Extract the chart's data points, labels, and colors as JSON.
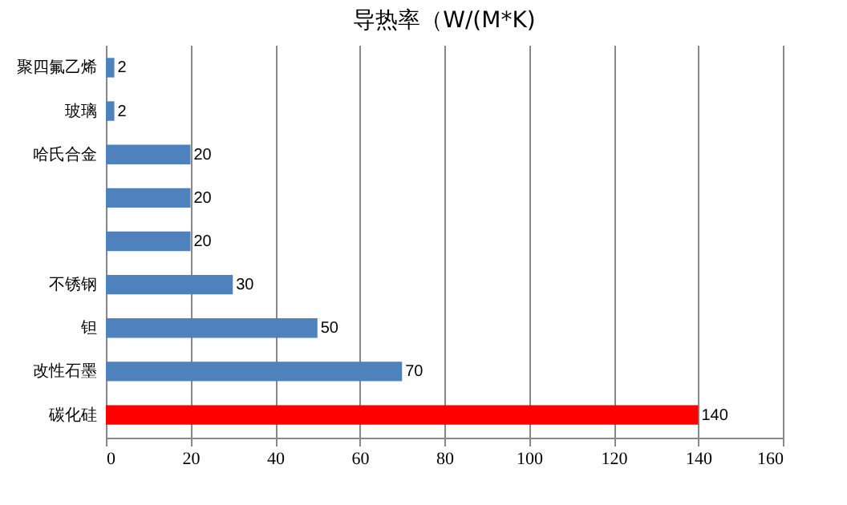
{
  "chart_data": {
    "type": "bar",
    "orientation": "horizontal",
    "title": "导热率（W/(M*K)",
    "categories": [
      "聚四氟乙烯",
      "玻璃",
      "哈氏合金",
      null,
      null,
      "不锈钢",
      "钽",
      "改性石墨",
      "碳化硅"
    ],
    "values": [
      2,
      2,
      20,
      20,
      20,
      30,
      50,
      70,
      140
    ],
    "colors": [
      "#4f81bd",
      "#4f81bd",
      "#4f81bd",
      "#4f81bd",
      "#4f81bd",
      "#4f81bd",
      "#4f81bd",
      "#4f81bd",
      "#ff0000"
    ],
    "xlim": [
      0,
      160
    ],
    "xticks": [
      0,
      20,
      40,
      60,
      80,
      100,
      120,
      140,
      160
    ],
    "grid": "x",
    "data_labels": true
  }
}
